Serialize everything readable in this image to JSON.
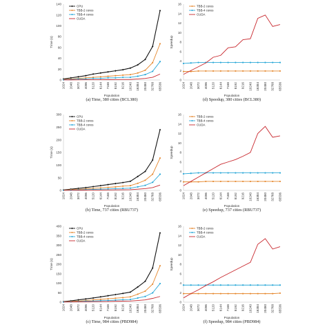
{
  "colors": {
    "CPU": "#111111",
    "TBB-2 cores": "#e5862b",
    "TBB-4 cores": "#2aa8d8",
    "CUDA": "#c8272d"
  },
  "chart_data": [
    {
      "id": "a",
      "type": "line",
      "title": "(a) Time, 380 cities (BCL380)",
      "xlabel": "Population",
      "ylabel": "Time (s)",
      "ylim": [
        0,
        140
      ],
      "yticks": [
        0,
        20,
        40,
        60,
        80,
        100,
        120,
        140
      ],
      "categories": [
        "1024",
        "2048",
        "3072",
        "4096",
        "5120",
        "6144",
        "7168",
        "8192",
        "9216",
        "10240",
        "16384",
        "20480",
        "32768",
        "65536"
      ],
      "legend": [
        "CPU",
        "TBB-2 cores",
        "TBB-4 cores",
        "CUDA"
      ],
      "legend_position": "top-left",
      "series": [
        {
          "name": "CPU",
          "values": [
            2,
            4,
            6,
            8,
            11,
            13,
            15,
            17,
            19,
            22,
            28,
            38,
            62,
            128
          ]
        },
        {
          "name": "TBB-2 cores",
          "values": [
            1,
            2,
            3,
            4,
            5,
            6,
            7,
            8,
            9,
            10,
            13,
            18,
            32,
            67
          ]
        },
        {
          "name": "TBB-4 cores",
          "values": [
            0.5,
            1,
            2,
            2,
            3,
            3,
            4,
            4,
            5,
            5,
            7,
            10,
            16,
            34
          ]
        },
        {
          "name": "CUDA",
          "values": [
            0.2,
            0.3,
            0.4,
            0.5,
            0.6,
            0.7,
            0.8,
            0.9,
            1,
            1,
            2,
            3,
            5,
            11
          ]
        }
      ]
    },
    {
      "id": "d",
      "type": "line",
      "title": "(d) Speedup, 380 cities (BCL380)",
      "xlabel": "Population",
      "ylabel": "Speedup",
      "ylim": [
        0,
        16
      ],
      "yticks": [
        0,
        2,
        4,
        6,
        8,
        10,
        12,
        14,
        16
      ],
      "categories": [
        "1024",
        "2048",
        "3072",
        "4096",
        "5120",
        "6144",
        "7168",
        "8192",
        "9216",
        "10240",
        "16384",
        "20480",
        "32768",
        "65536"
      ],
      "legend": [
        "TBB-2 cores",
        "TBB-4 cores",
        "CUDA"
      ],
      "legend_position": "top-left",
      "series": [
        {
          "name": "TBB-2 cores",
          "values": [
            1.8,
            1.8,
            1.9,
            1.9,
            1.9,
            1.9,
            1.9,
            1.9,
            1.9,
            1.9,
            1.9,
            1.9,
            1.9,
            1.9
          ]
        },
        {
          "name": "TBB-4 cores",
          "values": [
            3.5,
            3.6,
            3.7,
            3.7,
            3.7,
            3.7,
            3.7,
            3.7,
            3.7,
            3.7,
            3.7,
            3.7,
            3.7,
            3.7
          ]
        },
        {
          "name": "CUDA",
          "values": [
            1.2,
            2,
            2.8,
            3.6,
            4.8,
            5.2,
            6.8,
            7,
            8.5,
            8.7,
            13,
            13.7,
            11.3,
            11.7
          ]
        }
      ]
    },
    {
      "id": "b",
      "type": "line",
      "title": "(b) Time, 737 cities (RBU737)",
      "xlabel": "Population",
      "ylabel": "Time (s)",
      "ylim": [
        0,
        300
      ],
      "yticks": [
        0,
        50,
        100,
        150,
        200,
        250,
        300
      ],
      "categories": [
        "1024",
        "2048",
        "3072",
        "4096",
        "5120",
        "6144",
        "7168",
        "8192",
        "9216",
        "10240",
        "16384",
        "20480",
        "32768",
        "65536"
      ],
      "legend": [
        "CPU",
        "TBB-2 cores",
        "TBB-4 cores",
        "CUDA"
      ],
      "legend_position": "top-left",
      "series": [
        {
          "name": "CPU",
          "values": [
            2,
            5,
            8,
            11,
            15,
            19,
            23,
            27,
            31,
            36,
            55,
            75,
            120,
            240
          ]
        },
        {
          "name": "TBB-2 cores",
          "values": [
            1,
            3,
            4,
            6,
            8,
            10,
            12,
            14,
            17,
            19,
            28,
            40,
            64,
            128
          ]
        },
        {
          "name": "TBB-4 cores",
          "values": [
            0.5,
            1,
            2,
            3,
            4,
            5,
            6,
            7,
            8,
            9,
            14,
            20,
            32,
            64
          ]
        },
        {
          "name": "CUDA",
          "values": [
            0.3,
            0.5,
            0.7,
            1,
            1.3,
            1.6,
            2,
            2.3,
            2.6,
            3,
            5,
            7,
            11,
            21
          ]
        }
      ]
    },
    {
      "id": "e",
      "type": "line",
      "title": "(e) Speedup, 737 cities (RBU737)",
      "xlabel": "Population",
      "ylabel": "Speedup",
      "ylim": [
        0,
        16
      ],
      "yticks": [
        0,
        2,
        4,
        6,
        8,
        10,
        12,
        14,
        16
      ],
      "categories": [
        "1024",
        "2048",
        "3072",
        "4096",
        "5120",
        "6144",
        "7168",
        "8192",
        "9216",
        "10240",
        "16384",
        "20480",
        "32768",
        "65536"
      ],
      "legend": [
        "TBB-2 cores",
        "TBB-4 cores",
        "CUDA"
      ],
      "legend_position": "top-left",
      "series": [
        {
          "name": "TBB-2 cores",
          "values": [
            1.8,
            1.8,
            1.8,
            1.9,
            1.9,
            1.9,
            1.9,
            1.9,
            1.9,
            1.9,
            1.9,
            1.9,
            1.9,
            1.9
          ]
        },
        {
          "name": "TBB-4 cores",
          "values": [
            3.5,
            3.6,
            3.7,
            3.7,
            3.7,
            3.7,
            3.7,
            3.7,
            3.7,
            3.7,
            3.7,
            3.7,
            3.7,
            3.7
          ]
        },
        {
          "name": "CUDA",
          "values": [
            1,
            1.9,
            2.8,
            3.7,
            4.6,
            5.5,
            6,
            6.5,
            7.2,
            8,
            12,
            13.5,
            11.2,
            11.5
          ]
        }
      ]
    },
    {
      "id": "c",
      "type": "line",
      "title": "(c) Time, 984 cities (PBD984)",
      "xlabel": "Population",
      "ylabel": "Time (s)",
      "ylim": [
        0,
        400
      ],
      "yticks": [
        0,
        50,
        100,
        150,
        200,
        250,
        300,
        350,
        400
      ],
      "categories": [
        "1024",
        "2048",
        "3072",
        "4096",
        "5120",
        "6144",
        "7168",
        "8192",
        "9216",
        "10240",
        "16384",
        "20480",
        "32768",
        "65536"
      ],
      "legend": [
        "CPU",
        "TBB-2 cores",
        "TBB-4 cores",
        "CUDA"
      ],
      "legend_position": "top-left",
      "series": [
        {
          "name": "CPU",
          "values": [
            3,
            7,
            12,
            17,
            22,
            28,
            34,
            40,
            46,
            53,
            80,
            110,
            180,
            365
          ]
        },
        {
          "name": "TBB-2 cores",
          "values": [
            2,
            4,
            6,
            9,
            12,
            15,
            18,
            21,
            24,
            28,
            42,
            58,
            95,
            192
          ]
        },
        {
          "name": "TBB-4 cores",
          "values": [
            1,
            2,
            3,
            5,
            6,
            8,
            9,
            11,
            13,
            14,
            22,
            30,
            49,
            98
          ]
        },
        {
          "name": "CUDA",
          "values": [
            0.5,
            1,
            1.5,
            2,
            3,
            3.5,
            4,
            5,
            5.5,
            6,
            9,
            12,
            20,
            30
          ]
        }
      ]
    },
    {
      "id": "f",
      "type": "line",
      "title": "(f) Speedup, 984 cities (PBD984)",
      "xlabel": "Population",
      "ylabel": "Speedup",
      "ylim": [
        0,
        16
      ],
      "yticks": [
        0,
        2,
        4,
        6,
        8,
        10,
        12,
        14,
        16
      ],
      "categories": [
        "1024",
        "2048",
        "3072",
        "4096",
        "5120",
        "6144",
        "7168",
        "8192",
        "9216",
        "10240",
        "16384",
        "20480",
        "32768",
        "65536"
      ],
      "legend": [
        "TBB-2 cores",
        "TBB-4 cores",
        "CUDA"
      ],
      "legend_position": "top-left",
      "series": [
        {
          "name": "TBB-2 cores",
          "values": [
            1.8,
            1.8,
            1.8,
            1.8,
            1.8,
            1.8,
            1.8,
            1.8,
            1.8,
            1.8,
            1.8,
            1.8,
            1.8,
            1.9
          ]
        },
        {
          "name": "TBB-4 cores",
          "values": [
            3.6,
            3.6,
            3.6,
            3.6,
            3.6,
            3.6,
            3.6,
            3.6,
            3.6,
            3.6,
            3.6,
            3.6,
            3.6,
            3.6
          ]
        },
        {
          "name": "CUDA",
          "values": [
            0.9,
            1.8,
            2.6,
            3.5,
            4.3,
            5.2,
            6,
            6.8,
            7.6,
            8.4,
            12.2,
            13.4,
            11.2,
            11.7
          ]
        }
      ]
    }
  ]
}
